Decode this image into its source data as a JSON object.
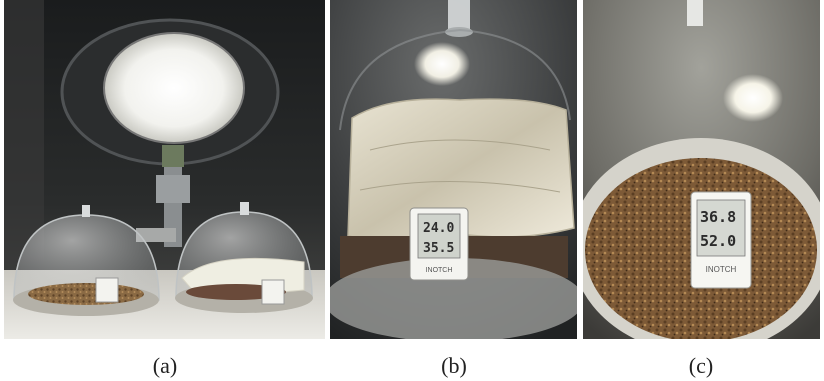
{
  "figure": {
    "captions": {
      "a": "(a)",
      "b": "(b)",
      "c": "(c)"
    },
    "thermometer_brand": "INOTCH",
    "thermometer_readings_c": {
      "line1": "36.8",
      "line2": "52.0"
    }
  }
}
